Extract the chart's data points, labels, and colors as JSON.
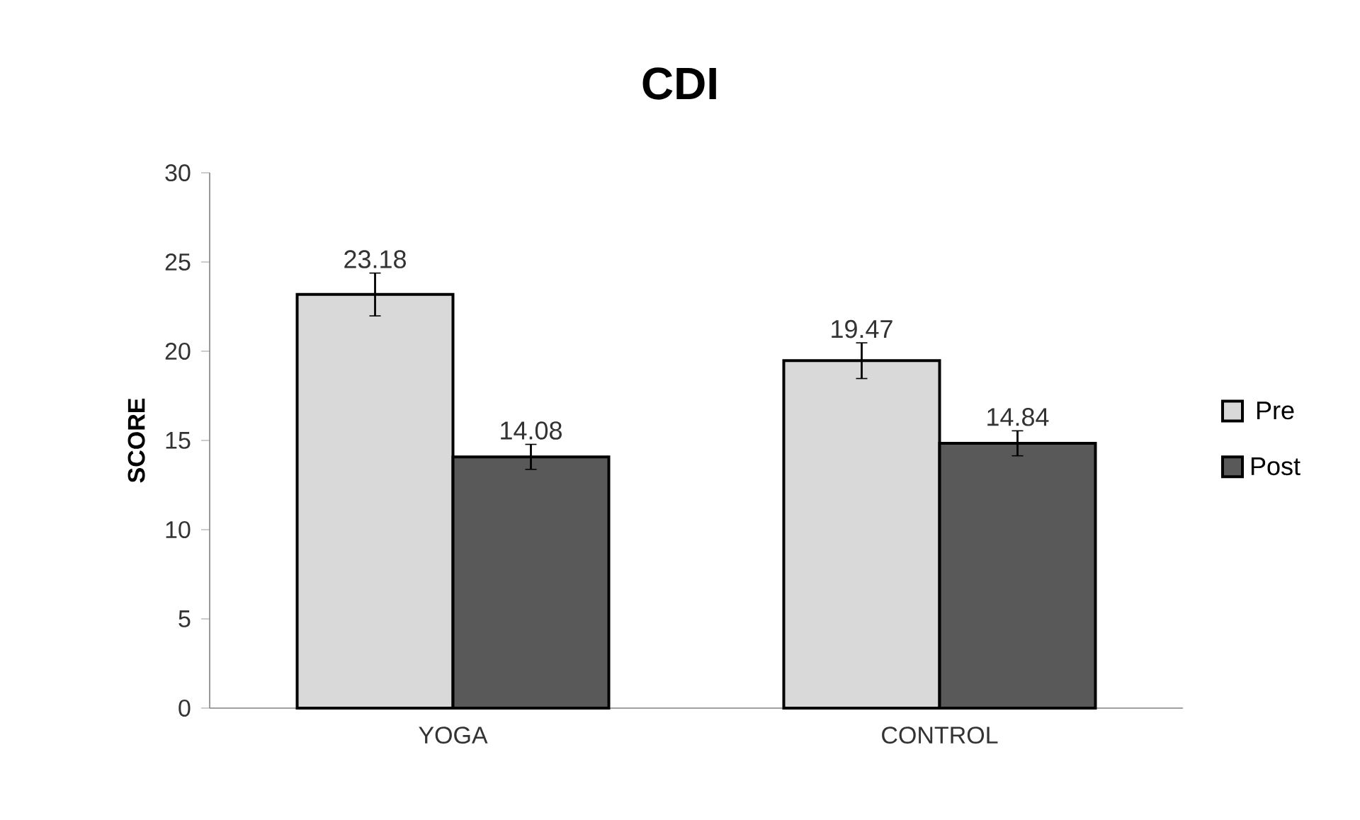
{
  "chart_data": {
    "type": "bar",
    "title": "CDI",
    "ylabel": "SCORE",
    "categories": [
      "YOGA",
      "CONTROL"
    ],
    "series": [
      {
        "name": "Pre",
        "color": "#d9d9d9",
        "values": [
          23.18,
          19.47
        ],
        "errors": [
          1.2,
          1.0
        ]
      },
      {
        "name": "Post",
        "color": "#595959",
        "values": [
          14.08,
          14.84
        ],
        "errors": [
          0.7,
          0.7
        ]
      }
    ],
    "ylim": [
      0,
      30
    ],
    "yticks": [
      0,
      5,
      10,
      15,
      20,
      25,
      30
    ],
    "data_labels": true,
    "legend": "right",
    "grid": false
  }
}
